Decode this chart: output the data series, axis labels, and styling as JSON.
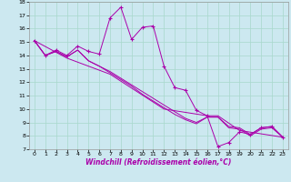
{
  "xlabel": "Windchill (Refroidissement éolien,°C)",
  "bg_color": "#cce8f0",
  "grid_color": "#a8d8cc",
  "line_color": "#aa00aa",
  "xlim": [
    -0.5,
    23.5
  ],
  "ylim": [
    7,
    18
  ],
  "xticks": [
    0,
    1,
    2,
    3,
    4,
    5,
    6,
    7,
    8,
    9,
    10,
    11,
    12,
    13,
    14,
    15,
    16,
    17,
    18,
    19,
    20,
    21,
    22,
    23
  ],
  "yticks": [
    7,
    8,
    9,
    10,
    11,
    12,
    13,
    14,
    15,
    16,
    17,
    18
  ],
  "series_main": [
    [
      0,
      15.1
    ],
    [
      1,
      14.0
    ],
    [
      2,
      14.4
    ],
    [
      3,
      14.0
    ],
    [
      4,
      14.7
    ],
    [
      5,
      14.3
    ],
    [
      6,
      14.1
    ],
    [
      7,
      16.8
    ],
    [
      8,
      17.6
    ],
    [
      9,
      15.2
    ],
    [
      10,
      16.1
    ],
    [
      11,
      16.2
    ],
    [
      12,
      13.2
    ],
    [
      13,
      11.6
    ],
    [
      14,
      11.4
    ],
    [
      15,
      9.9
    ],
    [
      16,
      9.5
    ],
    [
      17,
      7.2
    ],
    [
      18,
      7.5
    ],
    [
      19,
      8.3
    ],
    [
      20,
      8.1
    ],
    [
      21,
      8.6
    ],
    [
      22,
      8.7
    ],
    [
      23,
      7.9
    ]
  ],
  "series_diag1": [
    [
      0,
      15.1
    ],
    [
      1,
      14.0
    ],
    [
      2,
      14.3
    ],
    [
      3,
      13.9
    ],
    [
      4,
      14.4
    ],
    [
      5,
      13.6
    ],
    [
      6,
      13.2
    ],
    [
      7,
      12.8
    ],
    [
      8,
      12.3
    ],
    [
      9,
      11.8
    ],
    [
      10,
      11.3
    ],
    [
      11,
      10.8
    ],
    [
      12,
      10.3
    ],
    [
      13,
      9.8
    ],
    [
      14,
      9.3
    ],
    [
      15,
      9.0
    ],
    [
      16,
      9.4
    ],
    [
      17,
      9.4
    ],
    [
      18,
      8.7
    ],
    [
      19,
      8.6
    ],
    [
      20,
      8.1
    ],
    [
      21,
      8.6
    ],
    [
      22,
      8.7
    ],
    [
      23,
      7.9
    ]
  ],
  "series_diag2": [
    [
      0,
      15.1
    ],
    [
      1,
      14.0
    ],
    [
      2,
      14.3
    ],
    [
      3,
      13.9
    ],
    [
      4,
      14.4
    ],
    [
      5,
      13.6
    ],
    [
      6,
      13.2
    ],
    [
      7,
      12.7
    ],
    [
      8,
      12.2
    ],
    [
      9,
      11.7
    ],
    [
      10,
      11.1
    ],
    [
      11,
      10.6
    ],
    [
      12,
      10.1
    ],
    [
      13,
      9.6
    ],
    [
      14,
      9.2
    ],
    [
      15,
      8.9
    ],
    [
      16,
      9.4
    ],
    [
      17,
      9.4
    ],
    [
      18,
      8.6
    ],
    [
      19,
      8.5
    ],
    [
      20,
      8.0
    ],
    [
      21,
      8.5
    ],
    [
      22,
      8.6
    ],
    [
      23,
      7.9
    ]
  ],
  "series_diag3": [
    [
      0,
      15.1
    ],
    [
      3,
      13.8
    ],
    [
      7,
      12.6
    ],
    [
      12,
      10.0
    ],
    [
      16,
      9.5
    ],
    [
      17,
      9.5
    ],
    [
      19,
      8.4
    ],
    [
      23,
      7.9
    ]
  ]
}
